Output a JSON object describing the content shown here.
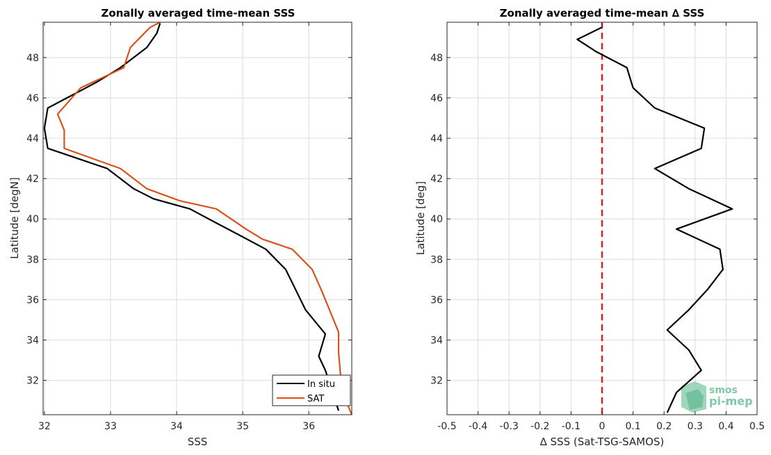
{
  "chart_data": [
    {
      "type": "line",
      "title": "Zonally averaged time-mean SSS",
      "xlabel": "SSS",
      "ylabel": "Latitude [degN]",
      "xlim": [
        31.98,
        36.65
      ],
      "ylim": [
        30.3,
        49.75
      ],
      "xticks": [
        32,
        33,
        34,
        35,
        36
      ],
      "yticks": [
        32,
        34,
        36,
        38,
        40,
        42,
        44,
        46,
        48
      ],
      "grid": true,
      "legend_position": "bottom-right",
      "series": [
        {
          "name": "In situ",
          "color": "#000000",
          "points": [
            [
              36.45,
              30.5
            ],
            [
              36.35,
              31.5
            ],
            [
              36.25,
              32.5
            ],
            [
              36.15,
              33.2
            ],
            [
              36.25,
              34.3
            ],
            [
              35.95,
              35.5
            ],
            [
              35.8,
              36.5
            ],
            [
              35.65,
              37.5
            ],
            [
              35.35,
              38.5
            ],
            [
              34.95,
              39.2
            ],
            [
              34.6,
              39.8
            ],
            [
              34.2,
              40.5
            ],
            [
              33.65,
              41.0
            ],
            [
              33.35,
              41.5
            ],
            [
              32.95,
              42.5
            ],
            [
              32.05,
              43.5
            ],
            [
              32.0,
              44.5
            ],
            [
              32.05,
              45.5
            ],
            [
              32.4,
              46.1
            ],
            [
              32.8,
              46.8
            ],
            [
              33.15,
              47.5
            ],
            [
              33.55,
              48.5
            ],
            [
              33.7,
              49.2
            ],
            [
              33.75,
              49.7
            ]
          ]
        },
        {
          "name": "SAT",
          "color": "#d95319",
          "points": [
            [
              36.65,
              30.3
            ],
            [
              36.5,
              31.5
            ],
            [
              36.45,
              33.4
            ],
            [
              36.45,
              34.4
            ],
            [
              36.2,
              36.4
            ],
            [
              36.05,
              37.5
            ],
            [
              35.75,
              38.5
            ],
            [
              35.3,
              39.0
            ],
            [
              35.05,
              39.5
            ],
            [
              34.6,
              40.5
            ],
            [
              34.05,
              40.9
            ],
            [
              33.55,
              41.5
            ],
            [
              33.15,
              42.5
            ],
            [
              32.3,
              43.5
            ],
            [
              32.3,
              44.4
            ],
            [
              32.2,
              45.2
            ],
            [
              32.55,
              46.5
            ],
            [
              33.2,
              47.5
            ],
            [
              33.3,
              48.5
            ],
            [
              33.6,
              49.5
            ],
            [
              33.75,
              49.75
            ]
          ]
        }
      ]
    },
    {
      "type": "line",
      "title": "Zonally averaged time-mean ∆ SSS",
      "xlabel": "∆ SSS (Sat-TSG-SAMOS)",
      "ylabel": "Latitude [deg]",
      "xlim": [
        -0.5,
        0.5
      ],
      "ylim": [
        30.3,
        49.75
      ],
      "xticks": [
        -0.5,
        -0.4,
        -0.3,
        -0.2,
        -0.1,
        0,
        0.1,
        0.2,
        0.3,
        0.4,
        0.5
      ],
      "yticks": [
        32,
        34,
        36,
        38,
        40,
        42,
        44,
        46,
        48
      ],
      "grid": true,
      "reference_line": {
        "x": 0,
        "color": "#e02020",
        "style": "dashed"
      },
      "series": [
        {
          "color": "#000000",
          "points": [
            [
              0.21,
              30.4
            ],
            [
              0.24,
              31.4
            ],
            [
              0.32,
              32.5
            ],
            [
              0.28,
              33.5
            ],
            [
              0.21,
              34.5
            ],
            [
              0.28,
              35.5
            ],
            [
              0.34,
              36.5
            ],
            [
              0.39,
              37.5
            ],
            [
              0.38,
              38.5
            ],
            [
              0.24,
              39.5
            ],
            [
              0.42,
              40.5
            ],
            [
              0.28,
              41.5
            ],
            [
              0.17,
              42.5
            ],
            [
              0.32,
              43.5
            ],
            [
              0.33,
              44.5
            ],
            [
              0.17,
              45.5
            ],
            [
              0.1,
              46.5
            ],
            [
              0.08,
              47.5
            ],
            [
              -0.02,
              48.3
            ],
            [
              -0.08,
              48.9
            ],
            [
              0.0,
              49.5
            ]
          ]
        }
      ]
    }
  ],
  "legend": {
    "items": [
      "In situ",
      "SAT"
    ]
  },
  "logo": {
    "line1": "smos",
    "line2": "pi-mep"
  }
}
